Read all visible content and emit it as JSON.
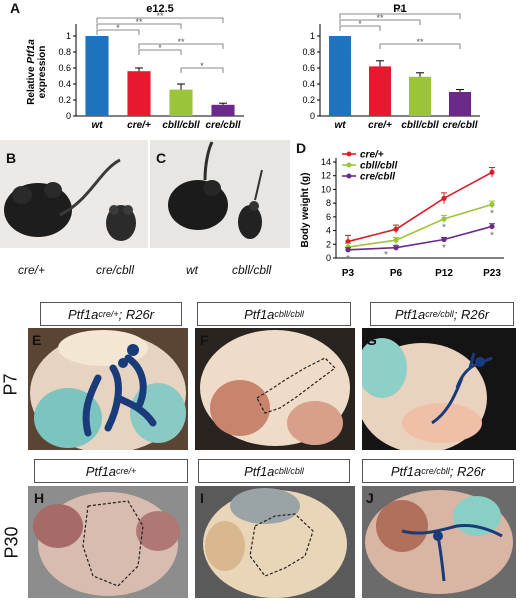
{
  "panels": {
    "a": "A",
    "b": "B",
    "c": "C",
    "d": "D",
    "e": "E",
    "f": "F",
    "g": "G",
    "h": "H",
    "i": "I",
    "j": "J"
  },
  "captions": {
    "b_left": "cre/+",
    "b_right": "cre/cbll",
    "c_left": "wt",
    "c_right": "cbll/cbll"
  },
  "stage_labels": {
    "p7": "P7",
    "p30": "P30"
  },
  "genotypes": {
    "e": {
      "base": "Ptf1a",
      "sup": "cre/+",
      "suffix": " ; R26r"
    },
    "f": {
      "base": "Ptf1a",
      "sup": "cbll/cbll",
      "suffix": ""
    },
    "g": {
      "base": "Ptf1a",
      "sup": "cre/cbll",
      "suffix": " ; R26r"
    },
    "h": {
      "base": "Ptf1a",
      "sup": "cre/+",
      "suffix": ""
    },
    "i": {
      "base": "Ptf1a",
      "sup": "cbll/cbll",
      "suffix": ""
    },
    "j": {
      "base": "Ptf1a",
      "sup": "cre/cbll",
      "suffix": " ; R26r"
    }
  },
  "chart_data": [
    {
      "type": "bar",
      "title": "e12.5",
      "ylabel_prefix": "Relative ",
      "ylabel_gene": "Ptf1a",
      "ylabel_suffix": " expression",
      "categories": [
        "wt",
        "cre/+",
        "cbll/cbll",
        "cre/cbll"
      ],
      "values": [
        1.0,
        0.56,
        0.33,
        0.14
      ],
      "errors": [
        0.0,
        0.04,
        0.07,
        0.02
      ],
      "colors": [
        "#1e73be",
        "#e8182e",
        "#9bc43a",
        "#6b2a8a"
      ],
      "ylim": [
        0,
        1.1
      ],
      "yticks": [
        "0",
        "0.2",
        "0.4",
        "0.6",
        "0.8",
        "1"
      ],
      "significance": [
        "*",
        "**",
        "**",
        "*",
        "**",
        "*"
      ]
    },
    {
      "type": "bar",
      "title": "P1",
      "categories": [
        "wt",
        "cre/+",
        "cbll/cbll",
        "cre/cbll"
      ],
      "values": [
        1.0,
        0.62,
        0.49,
        0.3
      ],
      "errors": [
        0.0,
        0.07,
        0.05,
        0.03
      ],
      "colors": [
        "#1e73be",
        "#e8182e",
        "#9bc43a",
        "#6b2a8a"
      ],
      "ylim": [
        0,
        1.1
      ],
      "yticks": [
        "0",
        "0.2",
        "0.4",
        "0.6",
        "0.8",
        "1"
      ],
      "significance": [
        "*",
        "**",
        "**",
        "**"
      ]
    },
    {
      "type": "line",
      "ylabel": "Body weight (g)",
      "x": [
        "P3",
        "P6",
        "P12",
        "P23"
      ],
      "ylim": [
        0,
        14
      ],
      "yticks": [
        "0",
        "2",
        "4",
        "6",
        "8",
        "10",
        "12",
        "14"
      ],
      "legend_position": "top-left",
      "series": [
        {
          "name": "cre/+",
          "color": "#d81e2a",
          "values": [
            2.4,
            4.2,
            8.7,
            12.5
          ],
          "errors": [
            0.9,
            0.6,
            0.8,
            0.7
          ]
        },
        {
          "name": "cbll/cbll",
          "color": "#9bc43a",
          "values": [
            1.6,
            2.6,
            5.7,
            7.8
          ],
          "errors": [
            0.5,
            0.4,
            0.5,
            0.5
          ]
        },
        {
          "name": "cre/cbll",
          "color": "#6b2a8a",
          "values": [
            1.2,
            1.5,
            2.7,
            4.6
          ],
          "errors": [
            0.3,
            0.3,
            0.3,
            0.4
          ]
        }
      ],
      "annotations": [
        "*",
        "*",
        "*",
        "*",
        "*",
        "*",
        "*"
      ]
    }
  ]
}
